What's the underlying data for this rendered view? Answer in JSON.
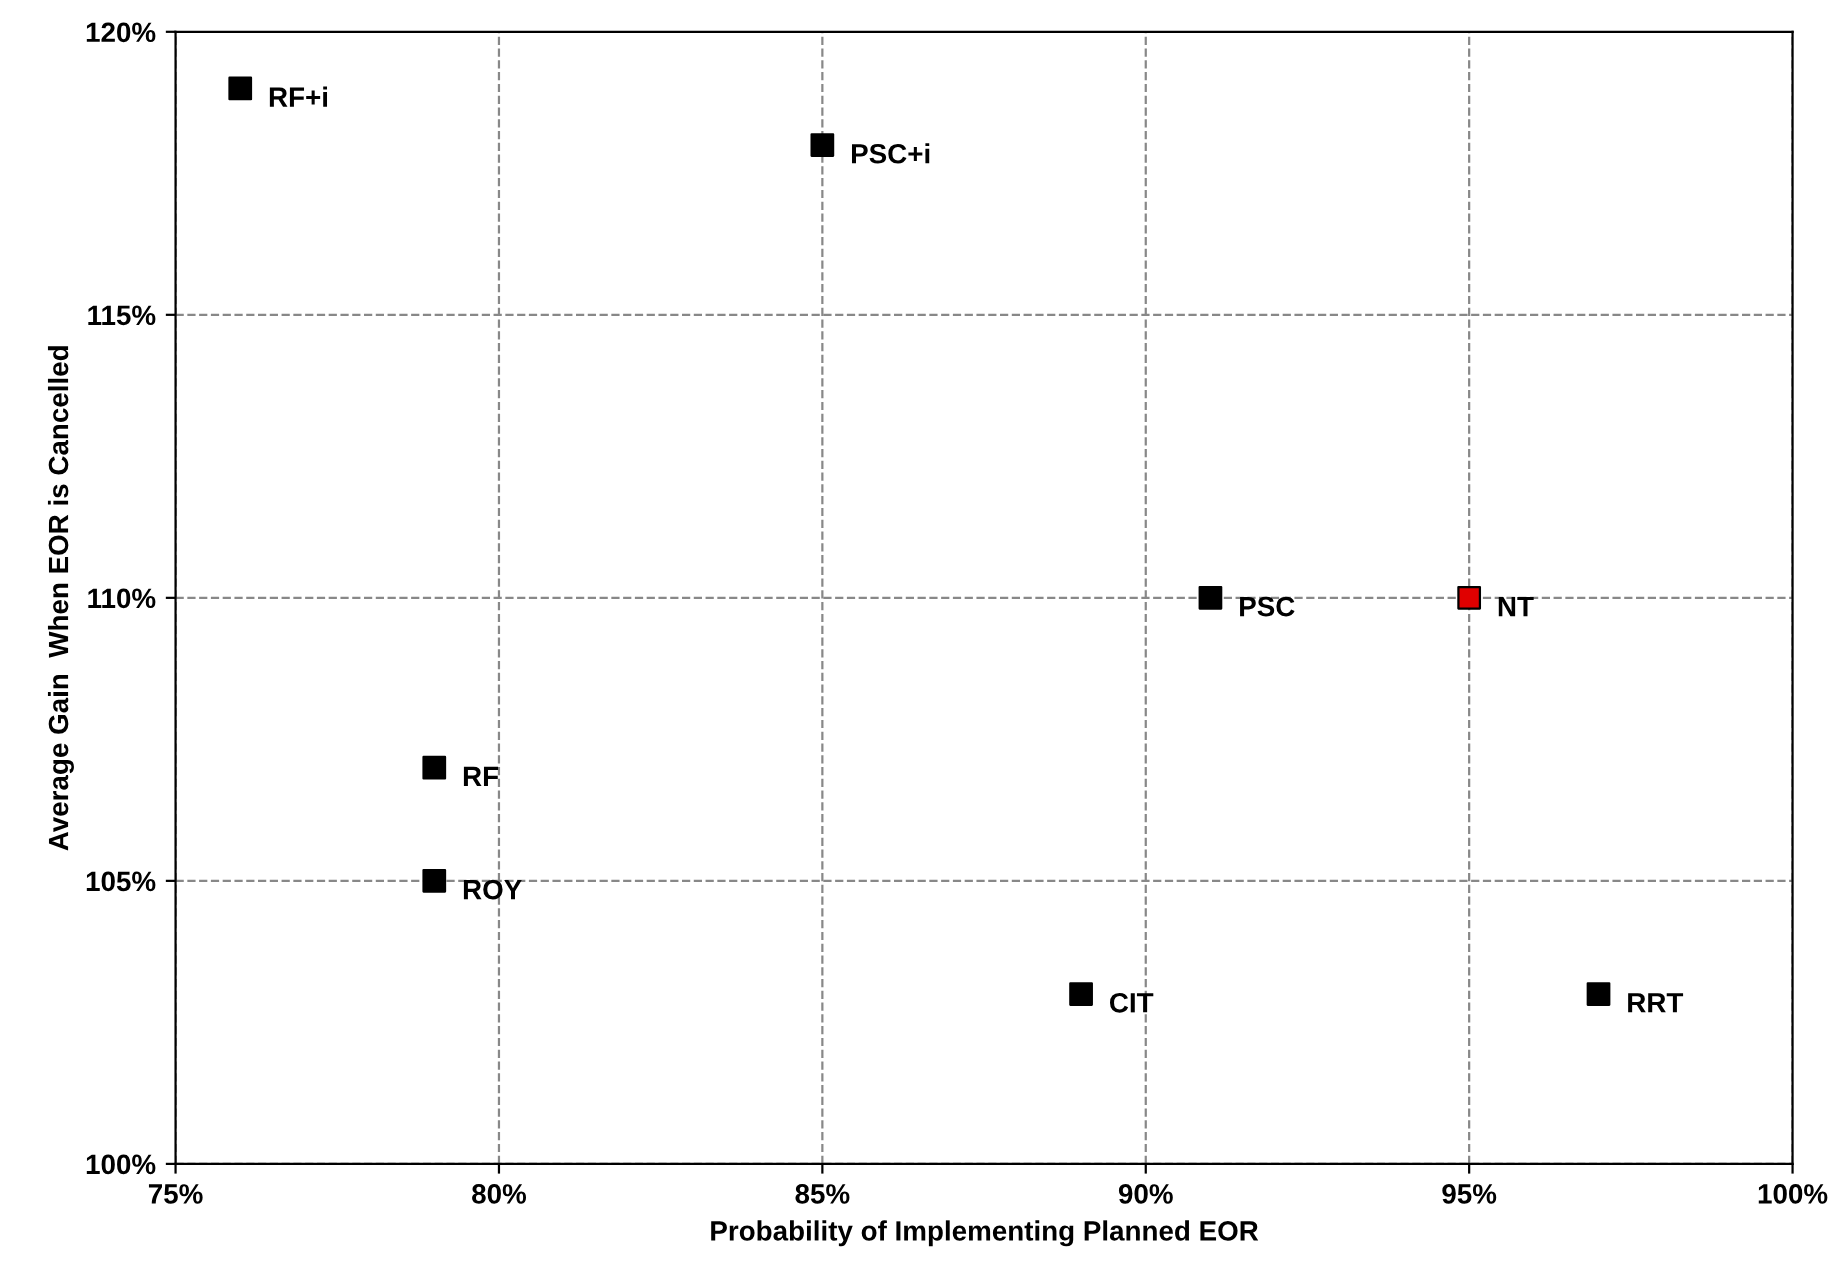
{
  "chart_data": {
    "type": "scatter",
    "xlabel": "Probability of Implementing Planned EOR",
    "ylabel": "Average Gain  When EOR is Cancelled",
    "x": [
      76,
      85,
      91,
      95,
      79,
      79,
      89,
      97
    ],
    "values": [
      119,
      118,
      110,
      110,
      107,
      105,
      103,
      103
    ],
    "colors": [
      "#000000",
      "#000000",
      "#000000",
      "#e00000",
      "#000000",
      "#000000",
      "#000000",
      "#000000"
    ],
    "marker": "square",
    "grid": true,
    "xlim": [
      75,
      100
    ],
    "ylim": [
      100,
      120
    ],
    "xticks": [
      {
        "value": 75,
        "label": "75%"
      },
      {
        "value": 80,
        "label": "80%"
      },
      {
        "value": 85,
        "label": "85%"
      },
      {
        "value": 90,
        "label": "90%"
      },
      {
        "value": 95,
        "label": "95%"
      },
      {
        "value": 100,
        "label": "100%"
      }
    ],
    "yticks": [
      {
        "value": 100,
        "label": "100%"
      },
      {
        "value": 105,
        "label": "105%"
      },
      {
        "value": 110,
        "label": "110%"
      },
      {
        "value": 115,
        "label": "115%"
      },
      {
        "value": 120,
        "label": "120%"
      }
    ],
    "annotations": [
      {
        "text": "RF+i",
        "x": 76,
        "y": 119
      },
      {
        "text": "PSC+i",
        "x": 85,
        "y": 118
      },
      {
        "text": "PSC",
        "x": 91,
        "y": 110
      },
      {
        "text": "NT",
        "x": 95,
        "y": 110
      },
      {
        "text": "RF",
        "x": 79,
        "y": 107
      },
      {
        "text": "ROY",
        "x": 79,
        "y": 105
      },
      {
        "text": "CIT",
        "x": 89,
        "y": 103
      },
      {
        "text": "RRT",
        "x": 97,
        "y": 103
      }
    ]
  }
}
